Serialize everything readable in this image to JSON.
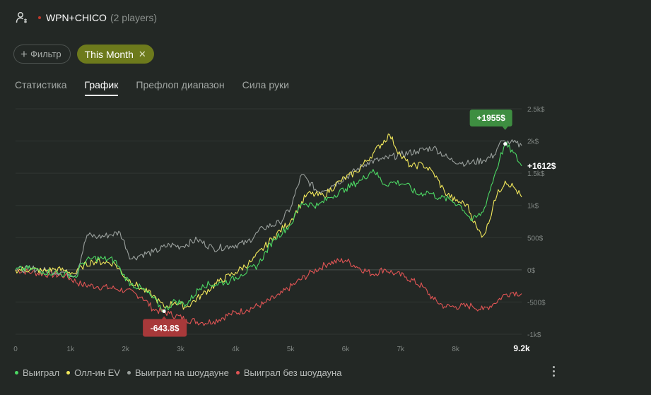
{
  "header": {
    "title": "WPN+CHICO",
    "players": "(2 players)",
    "dot_color": "#c0392b"
  },
  "filters": {
    "add_filter": "Фильтр",
    "period": "This Month"
  },
  "tabs": [
    {
      "label": "Статистика",
      "active": false
    },
    {
      "label": "График",
      "active": true
    },
    {
      "label": "Префлоп диапазон",
      "active": false
    },
    {
      "label": "Сила руки",
      "active": false
    }
  ],
  "chart_data": {
    "type": "line",
    "x_ticks": [
      "0",
      "1k",
      "2k",
      "3k",
      "4k",
      "5k",
      "6k",
      "7k",
      "8k",
      "9.2k"
    ],
    "y_ticks": [
      "2.5k$",
      "2k$",
      "1.5k$",
      "1k$",
      "500$",
      "0$",
      "-500$",
      "-1k$"
    ],
    "xlim": [
      0,
      9200
    ],
    "ylim": [
      -1000,
      2500
    ],
    "annotations": {
      "max_label": "+1955$",
      "max_x": 8900,
      "max_y": 1955,
      "min_label": "-643.8$",
      "min_x": 2700,
      "min_y": -643.8,
      "end_label": "+1612$",
      "end_y": 1612
    },
    "series": [
      {
        "name": "Выиграл",
        "color": "#4cd964",
        "points": [
          [
            0,
            0
          ],
          [
            300,
            20
          ],
          [
            500,
            -30
          ],
          [
            700,
            -40
          ],
          [
            800,
            -60
          ],
          [
            1000,
            -80
          ],
          [
            1100,
            -120
          ],
          [
            1200,
            100
          ],
          [
            1400,
            180
          ],
          [
            1600,
            170
          ],
          [
            1800,
            150
          ],
          [
            1950,
            -70
          ],
          [
            2100,
            -220
          ],
          [
            2300,
            -290
          ],
          [
            2500,
            -440
          ],
          [
            2700,
            -640
          ],
          [
            2900,
            -480
          ],
          [
            3100,
            -540
          ],
          [
            3400,
            -230
          ],
          [
            3600,
            -230
          ],
          [
            3900,
            -170
          ],
          [
            4100,
            -70
          ],
          [
            4400,
            70
          ],
          [
            4700,
            480
          ],
          [
            5000,
            700
          ],
          [
            5200,
            1040
          ],
          [
            5500,
            1000
          ],
          [
            5700,
            1120
          ],
          [
            6000,
            1260
          ],
          [
            6300,
            1400
          ],
          [
            6500,
            1560
          ],
          [
            6700,
            1330
          ],
          [
            6900,
            1360
          ],
          [
            7100,
            1330
          ],
          [
            7300,
            1170
          ],
          [
            7500,
            1210
          ],
          [
            7700,
            1120
          ],
          [
            7900,
            1090
          ],
          [
            8100,
            990
          ],
          [
            8300,
            760
          ],
          [
            8500,
            900
          ],
          [
            8700,
            1450
          ],
          [
            8800,
            1720
          ],
          [
            8900,
            1955
          ],
          [
            9050,
            1820
          ],
          [
            9200,
            1612
          ]
        ]
      },
      {
        "name": "Олл-ин EV",
        "color": "#f2e85b",
        "points": [
          [
            0,
            0
          ],
          [
            300,
            10
          ],
          [
            500,
            -20
          ],
          [
            700,
            10
          ],
          [
            900,
            -10
          ],
          [
            1100,
            -60
          ],
          [
            1200,
            50
          ],
          [
            1400,
            130
          ],
          [
            1600,
            120
          ],
          [
            1800,
            100
          ],
          [
            2000,
            -120
          ],
          [
            2300,
            -300
          ],
          [
            2500,
            -400
          ],
          [
            2700,
            -580
          ],
          [
            2900,
            -500
          ],
          [
            3100,
            -580
          ],
          [
            3400,
            -380
          ],
          [
            3700,
            -180
          ],
          [
            4000,
            -40
          ],
          [
            4300,
            140
          ],
          [
            4700,
            520
          ],
          [
            5000,
            760
          ],
          [
            5300,
            1180
          ],
          [
            5600,
            1150
          ],
          [
            5900,
            1380
          ],
          [
            6200,
            1520
          ],
          [
            6500,
            1810
          ],
          [
            6800,
            2100
          ],
          [
            7000,
            1770
          ],
          [
            7200,
            1600
          ],
          [
            7400,
            1640
          ],
          [
            7600,
            1500
          ],
          [
            7800,
            1210
          ],
          [
            8000,
            1070
          ],
          [
            8200,
            1020
          ],
          [
            8400,
            620
          ],
          [
            8500,
            530
          ],
          [
            8600,
            720
          ],
          [
            8700,
            1080
          ],
          [
            8900,
            1380
          ],
          [
            9050,
            1290
          ],
          [
            9200,
            1130
          ]
        ]
      },
      {
        "name": "Выиграл на шоудауне",
        "color": "#9aa09d",
        "points": [
          [
            0,
            0
          ],
          [
            300,
            20
          ],
          [
            600,
            -20
          ],
          [
            900,
            -40
          ],
          [
            1100,
            -80
          ],
          [
            1300,
            540
          ],
          [
            1500,
            510
          ],
          [
            1700,
            540
          ],
          [
            1900,
            580
          ],
          [
            2100,
            170
          ],
          [
            2300,
            240
          ],
          [
            2500,
            270
          ],
          [
            2800,
            390
          ],
          [
            3000,
            360
          ],
          [
            3300,
            470
          ],
          [
            3600,
            330
          ],
          [
            3900,
            370
          ],
          [
            4200,
            420
          ],
          [
            4500,
            650
          ],
          [
            4800,
            730
          ],
          [
            5000,
            960
          ],
          [
            5200,
            1480
          ],
          [
            5500,
            1210
          ],
          [
            5800,
            1330
          ],
          [
            6100,
            1490
          ],
          [
            6400,
            1670
          ],
          [
            6700,
            1720
          ],
          [
            7000,
            1790
          ],
          [
            7300,
            1840
          ],
          [
            7600,
            1900
          ],
          [
            7900,
            1710
          ],
          [
            8200,
            1650
          ],
          [
            8500,
            1700
          ],
          [
            8700,
            1780
          ],
          [
            8800,
            1970
          ],
          [
            9000,
            1980
          ],
          [
            9200,
            1930
          ]
        ]
      },
      {
        "name": "Выиграл без шоудауна",
        "color": "#e05454",
        "points": [
          [
            0,
            0
          ],
          [
            300,
            -40
          ],
          [
            600,
            -70
          ],
          [
            900,
            -90
          ],
          [
            1200,
            -230
          ],
          [
            1500,
            -260
          ],
          [
            1800,
            -290
          ],
          [
            2000,
            -320
          ],
          [
            2300,
            -420
          ],
          [
            2500,
            -610
          ],
          [
            2800,
            -680
          ],
          [
            3100,
            -770
          ],
          [
            3400,
            -820
          ],
          [
            3600,
            -800
          ],
          [
            3900,
            -690
          ],
          [
            4200,
            -620
          ],
          [
            4500,
            -530
          ],
          [
            4800,
            -390
          ],
          [
            5100,
            -200
          ],
          [
            5400,
            -30
          ],
          [
            5700,
            110
          ],
          [
            6000,
            150
          ],
          [
            6200,
            50
          ],
          [
            6500,
            -70
          ],
          [
            6700,
            10
          ],
          [
            6900,
            -60
          ],
          [
            7100,
            -110
          ],
          [
            7400,
            -260
          ],
          [
            7600,
            -460
          ],
          [
            7800,
            -570
          ],
          [
            8000,
            -570
          ],
          [
            8300,
            -560
          ],
          [
            8500,
            -620
          ],
          [
            8700,
            -520
          ],
          [
            8900,
            -380
          ],
          [
            9050,
            -350
          ],
          [
            9200,
            -370
          ]
        ]
      }
    ]
  },
  "more_icon": "more-vertical-icon"
}
